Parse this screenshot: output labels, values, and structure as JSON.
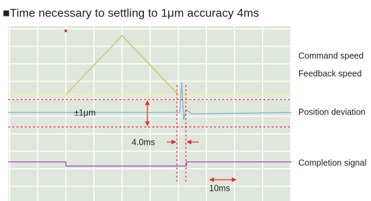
{
  "title": "■Time necessary to settling to 1μm accuracy 4ms",
  "legend": {
    "command_speed": "Command speed",
    "feedback_speed": "Feedback speed",
    "position_deviation": "Position deviation",
    "completion_signal": "Completion signal"
  },
  "annotations": {
    "tolerance": "±1μm",
    "settling_time": "4.0ms",
    "scale": "10ms"
  }
}
